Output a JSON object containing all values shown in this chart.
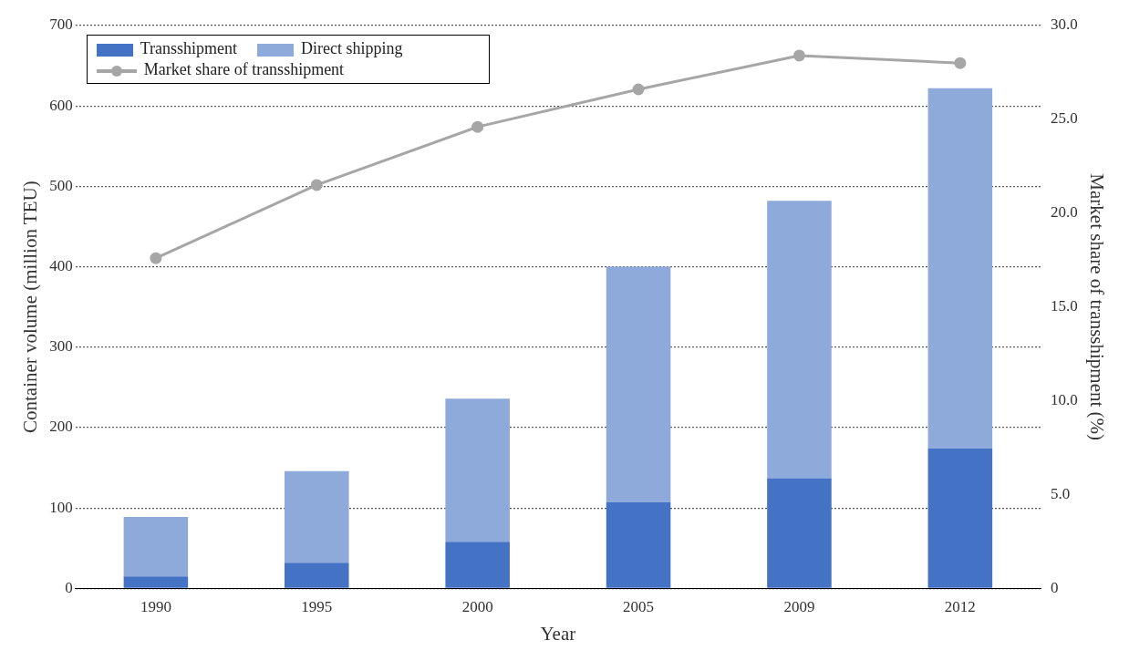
{
  "chart_data": {
    "type": "bar",
    "xlabel": "Year",
    "ylabel": "Container volume (million TEU)",
    "y2label": "Market share of transshipment (%)",
    "categories": [
      "1990",
      "1995",
      "2000",
      "2005",
      "2009",
      "2012"
    ],
    "stacked": true,
    "series": [
      {
        "name": "Transshipment",
        "color": "#4472c4",
        "values": [
          15,
          32,
          58,
          107,
          137,
          174
        ]
      },
      {
        "name": "Direct shipping",
        "color": "#8eaadb",
        "values": [
          74,
          114,
          178,
          293,
          345,
          448
        ]
      },
      {
        "name": "Market share of transshipment",
        "type": "line",
        "axis": "y2",
        "color": "#a6a6a6",
        "values": [
          17.6,
          21.5,
          24.6,
          26.6,
          28.4,
          28.0
        ]
      }
    ],
    "ylim": [
      0,
      700
    ],
    "yticks": [
      0,
      100,
      200,
      300,
      400,
      500,
      600,
      700
    ],
    "y2lim": [
      0,
      30
    ],
    "y2ticks": [
      {
        "value": 0,
        "label": "0"
      },
      {
        "value": 5,
        "label": "5.0"
      },
      {
        "value": 10,
        "label": "10.0"
      },
      {
        "value": 15,
        "label": "15.0"
      },
      {
        "value": 20,
        "label": "20.0"
      },
      {
        "value": 25,
        "label": "25.0"
      },
      {
        "value": 30,
        "label": "30.0"
      }
    ],
    "grid": "y",
    "legend": "top left",
    "marker": "circle"
  }
}
